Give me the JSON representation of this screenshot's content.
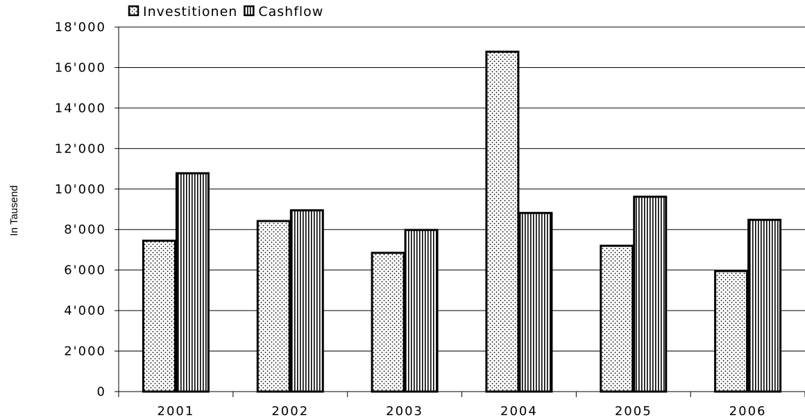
{
  "chart_data": {
    "type": "bar",
    "categories": [
      "2001",
      "2002",
      "2003",
      "2004",
      "2005",
      "2006"
    ],
    "series": [
      {
        "name": "Investitionen",
        "values": [
          7450,
          8420,
          6850,
          16780,
          7200,
          5950
        ],
        "pattern": "dots"
      },
      {
        "name": "Cashflow",
        "values": [
          10780,
          8950,
          7980,
          8820,
          9620,
          8480
        ],
        "pattern": "vertical-stripes"
      }
    ],
    "ylabel": "In Tausend",
    "xlabel": "",
    "ylim": [
      0,
      18000
    ],
    "yticks": [
      0,
      2000,
      4000,
      6000,
      8000,
      10000,
      12000,
      14000,
      16000,
      18000
    ],
    "ytick_labels": [
      "0",
      "2'000",
      "4'000",
      "6'000",
      "8'000",
      "10'000",
      "12'000",
      "14'000",
      "16'000",
      "18'000"
    ],
    "grid": true,
    "legend_position": "top-left"
  }
}
